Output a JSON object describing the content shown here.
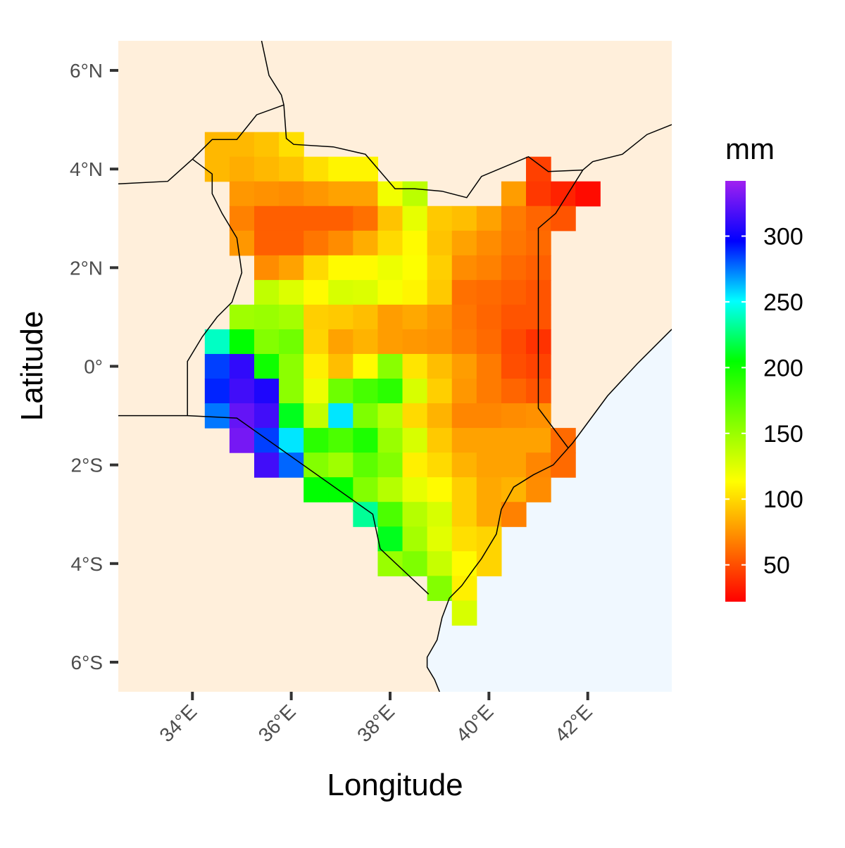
{
  "chart_data": {
    "type": "heatmap",
    "xlabel": "Longitude",
    "ylabel": "Latitude",
    "xlim": [
      32.5,
      43.7
    ],
    "ylim": [
      -6.6,
      6.6
    ],
    "x_ticks": [
      {
        "value": 34,
        "label": "34°E"
      },
      {
        "value": 36,
        "label": "36°E"
      },
      {
        "value": 38,
        "label": "38°E"
      },
      {
        "value": 40,
        "label": "40°E"
      },
      {
        "value": 42,
        "label": "42°E"
      }
    ],
    "y_ticks": [
      {
        "value": 6,
        "label": "6°N"
      },
      {
        "value": 4,
        "label": "4°N"
      },
      {
        "value": 2,
        "label": "2°N"
      },
      {
        "value": 0,
        "label": "0°"
      },
      {
        "value": -2,
        "label": "2°S"
      },
      {
        "value": -4,
        "label": "4°S"
      },
      {
        "value": -6,
        "label": "6°S"
      }
    ],
    "colors": {
      "land": "#FFEFDB",
      "ocean": "#F0F8FF",
      "border": "#000000",
      "axis_tick": "#333333"
    },
    "legend": {
      "title": "mm",
      "position": "right",
      "range": [
        22,
        342
      ],
      "ticks": [
        50,
        100,
        150,
        200,
        250,
        300
      ],
      "colors": [
        "#ff0000",
        "#ff8000",
        "#ffff00",
        "#80ff00",
        "#00ff00",
        "#00ffff",
        "#0000ff",
        "#a020f0"
      ]
    },
    "grid": {
      "cell_size_deg": 0.5,
      "west_lon": 34.25,
      "north_lat": 4.75,
      "rows": [
        [
          88,
          88,
          92,
          102,
          null,
          null,
          null,
          null,
          null,
          null,
          null,
          null,
          null,
          null,
          null,
          null
        ],
        [
          88,
          84,
          88,
          92,
          102,
          110,
          110,
          null,
          null,
          null,
          null,
          null,
          null,
          45,
          null,
          null
        ],
        [
          null,
          76,
          74,
          72,
          76,
          80,
          80,
          118,
          138,
          null,
          null,
          null,
          78,
          42,
          34,
          26
        ],
        [
          null,
          68,
          56,
          56,
          56,
          56,
          62,
          92,
          122,
          94,
          90,
          80,
          66,
          58,
          52,
          null
        ],
        [
          null,
          76,
          56,
          56,
          64,
          72,
          84,
          100,
          112,
          92,
          80,
          72,
          64,
          60,
          null,
          null
        ],
        [
          null,
          null,
          72,
          80,
          100,
          112,
          112,
          120,
          114,
          96,
          72,
          68,
          60,
          56,
          null,
          null
        ],
        [
          null,
          null,
          136,
          126,
          112,
          128,
          126,
          116,
          110,
          94,
          62,
          60,
          56,
          52,
          null,
          null
        ],
        [
          null,
          148,
          150,
          146,
          96,
          94,
          90,
          78,
          82,
          76,
          64,
          58,
          52,
          52,
          null,
          null
        ],
        [
          240,
          205,
          158,
          165,
          98,
          80,
          86,
          78,
          76,
          74,
          66,
          60,
          48,
          40,
          null,
          null
        ],
        [
          285,
          310,
          200,
          155,
          108,
          90,
          112,
          156,
          104,
          90,
          78,
          66,
          50,
          46,
          null,
          null
        ],
        [
          290,
          315,
          305,
          155,
          120,
          166,
          180,
          190,
          128,
          96,
          76,
          66,
          58,
          52,
          null,
          null
        ],
        [
          275,
          325,
          315,
          210,
          135,
          255,
          160,
          140,
          100,
          86,
          70,
          70,
          72,
          74,
          null,
          null
        ],
        [
          null,
          330,
          285,
          255,
          190,
          178,
          195,
          150,
          128,
          94,
          80,
          80,
          80,
          80,
          60,
          null
        ],
        [
          null,
          null,
          315,
          278,
          158,
          148,
          172,
          158,
          108,
          100,
          86,
          80,
          80,
          70,
          60,
          null
        ],
        [
          null,
          null,
          null,
          null,
          205,
          205,
          158,
          140,
          122,
          112,
          96,
          82,
          86,
          72,
          null,
          null
        ],
        [
          null,
          null,
          null,
          null,
          null,
          null,
          232,
          178,
          140,
          128,
          96,
          82,
          68,
          null,
          null,
          null
        ],
        [
          null,
          null,
          null,
          null,
          null,
          null,
          null,
          210,
          146,
          124,
          102,
          98,
          null,
          null,
          null,
          null
        ],
        [
          null,
          null,
          null,
          null,
          null,
          null,
          null,
          150,
          160,
          134,
          112,
          98,
          null,
          null,
          null,
          null
        ],
        [
          null,
          null,
          null,
          null,
          null,
          null,
          null,
          null,
          null,
          158,
          108,
          null,
          null,
          null,
          null,
          null
        ],
        [
          null,
          null,
          null,
          null,
          null,
          null,
          null,
          null,
          null,
          null,
          128,
          null,
          null,
          null,
          null,
          null
        ]
      ]
    },
    "coastline": [
      [
        43.7,
        0.75
      ],
      [
        43.0,
        0.05
      ],
      [
        42.4,
        -0.6
      ],
      [
        41.7,
        -1.55
      ],
      [
        41.3,
        -2.0
      ],
      [
        40.9,
        -2.2
      ],
      [
        40.5,
        -2.45
      ],
      [
        40.25,
        -2.9
      ],
      [
        40.15,
        -3.4
      ],
      [
        39.85,
        -3.9
      ],
      [
        39.7,
        -4.1
      ],
      [
        39.45,
        -4.45
      ],
      [
        39.2,
        -4.7
      ],
      [
        39.05,
        -5.1
      ],
      [
        38.95,
        -5.55
      ],
      [
        38.75,
        -5.9
      ],
      [
        38.75,
        -6.1
      ],
      [
        38.9,
        -6.35
      ],
      [
        39.0,
        -6.6
      ]
    ],
    "borders": [
      [
        [
          38.78,
          -4.62
        ],
        [
          37.8,
          -3.7
        ],
        [
          37.65,
          -3.0
        ],
        [
          34.9,
          -1.05
        ],
        [
          33.9,
          -1.0
        ],
        [
          32.5,
          -1.0
        ]
      ],
      [
        [
          34.0,
          4.2
        ],
        [
          34.4,
          4.6
        ],
        [
          34.9,
          4.6
        ],
        [
          35.3,
          5.1
        ],
        [
          35.85,
          5.3
        ]
      ],
      [
        [
          35.85,
          5.3
        ],
        [
          35.9,
          4.62
        ],
        [
          36.05,
          4.5
        ],
        [
          36.85,
          4.45
        ],
        [
          37.5,
          4.3
        ],
        [
          38.1,
          3.6
        ],
        [
          38.5,
          3.6
        ],
        [
          39.05,
          3.55
        ],
        [
          39.55,
          3.42
        ],
        [
          39.85,
          3.85
        ],
        [
          40.8,
          4.25
        ],
        [
          41.2,
          3.95
        ],
        [
          41.9,
          3.98
        ]
      ],
      [
        [
          41.9,
          3.98
        ],
        [
          41.35,
          3.1
        ],
        [
          41.0,
          2.8
        ],
        [
          41.0,
          -0.85
        ],
        [
          41.6,
          -1.65
        ]
      ],
      [
        [
          34.0,
          4.2
        ],
        [
          33.5,
          3.75
        ],
        [
          32.5,
          3.7
        ]
      ],
      [
        [
          34.0,
          4.2
        ],
        [
          34.4,
          3.9
        ],
        [
          34.4,
          3.5
        ],
        [
          34.6,
          3.1
        ],
        [
          34.9,
          2.6
        ],
        [
          35.0,
          1.9
        ],
        [
          34.8,
          1.3
        ],
        [
          34.5,
          1.0
        ],
        [
          34.2,
          0.6
        ],
        [
          33.9,
          0.1
        ],
        [
          33.9,
          -1.0
        ]
      ],
      [
        [
          35.4,
          6.6
        ],
        [
          35.55,
          5.9
        ],
        [
          35.8,
          5.5
        ],
        [
          35.85,
          5.3
        ]
      ],
      [
        [
          41.9,
          3.98
        ],
        [
          42.1,
          4.15
        ],
        [
          42.7,
          4.3
        ],
        [
          43.2,
          4.7
        ],
        [
          43.7,
          4.9
        ]
      ]
    ]
  }
}
